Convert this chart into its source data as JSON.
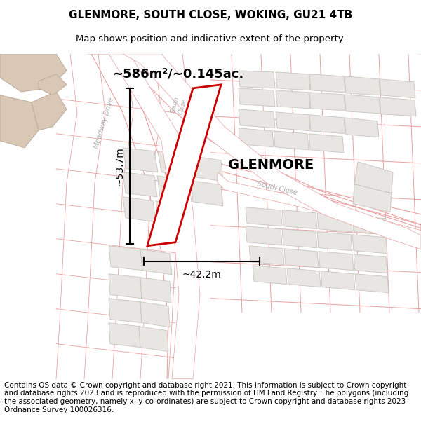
{
  "title_line1": "GLENMORE, SOUTH CLOSE, WOKING, GU21 4TB",
  "title_line2": "Map shows position and indicative extent of the property.",
  "footer_text": "Contains OS data © Crown copyright and database right 2021. This information is subject to Crown copyright and database rights 2023 and is reproduced with the permission of HM Land Registry. The polygons (including the associated geometry, namely x, y co-ordinates) are subject to Crown copyright and database rights 2023 Ordnance Survey 100026316.",
  "area_label": "~586m²/~0.145ac.",
  "property_name": "GLENMORE",
  "dim_width": "~42.2m",
  "dim_height": "~53.7m",
  "map_bg": "#ffffff",
  "road_line_color": "#e8a0a0",
  "building_fill": "#e8e6e2",
  "building_stroke": "#c8c4be",
  "tan_building_fill": "#d8c8b5",
  "tan_building_stroke": "#c0b0a0",
  "property_stroke": "#cc0000",
  "property_fill": "#ffffff",
  "road_label_color": "#aaaaaa",
  "title_fontsize": 11,
  "subtitle_fontsize": 9.5,
  "footer_fontsize": 7.5,
  "area_fontsize": 13,
  "name_fontsize": 14,
  "dim_fontsize": 10,
  "road_label_fontsize": 7
}
